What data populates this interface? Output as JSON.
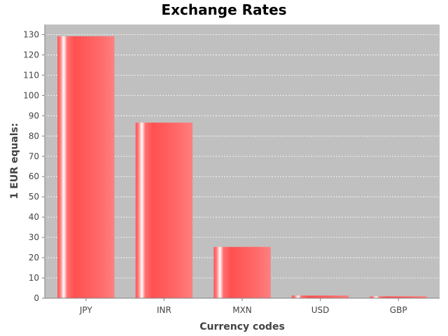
{
  "chart_data": {
    "type": "bar",
    "title": "Exchange Rates",
    "xlabel": "Currency codes",
    "ylabel": "1 EUR equals:",
    "categories": [
      "JPY",
      "INR",
      "MXN",
      "USD",
      "GBP"
    ],
    "values": [
      129.2,
      86.6,
      25.3,
      1.3,
      0.9
    ],
    "ylim": [
      0,
      135
    ],
    "yticks": [
      0,
      10,
      20,
      30,
      40,
      50,
      60,
      70,
      80,
      90,
      100,
      110,
      120,
      130
    ],
    "grid": true,
    "legend": "none",
    "colors": {
      "bar": "#ff5555",
      "bar_light": "#ff8080",
      "plot_background": "#c0c0c0",
      "gridline": "#ffffff",
      "axis": "#808080"
    }
  }
}
